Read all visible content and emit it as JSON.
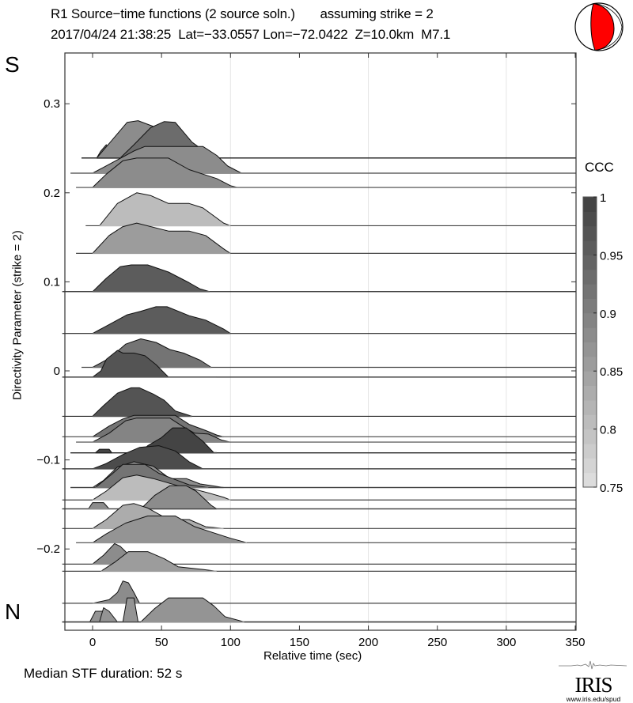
{
  "header": {
    "title_line1": "R1 Source−time functions (2 source soln.)       assuming strike = 2",
    "title_line2": "2017/04/24 21:38:25  Lat=−33.0557 Lon=−72.0422  Z=10.0km  M7.1"
  },
  "labels": {
    "south": "S",
    "north": "N",
    "median": "Median STF duration: 52 s",
    "colorbar_title": "CCC"
  },
  "logo": {
    "word": "IRIS",
    "url": "www.iris.edu/spud"
  },
  "beachball": {
    "fill_color": "#ff0000",
    "icon": "focal-mechanism-beachball-icon"
  },
  "chart_data": {
    "type": "area",
    "title": "R1 Source-time functions (2 source soln.)",
    "subtitle": "assuming strike = 2",
    "xlabel": "Relative time (sec)",
    "ylabel": "Directivity Parameter (strike = 2)",
    "xlim": [
      -20,
      350
    ],
    "ylim": [
      -0.29,
      0.35
    ],
    "xticks": [
      0,
      50,
      100,
      150,
      200,
      250,
      300,
      350
    ],
    "xtick_labels": [
      "0",
      "50",
      "100",
      "150",
      "200",
      "250",
      "300",
      "350"
    ],
    "yticks": [
      0.3,
      0.2,
      0.1,
      0,
      -0.1,
      -0.2
    ],
    "ytick_labels": [
      "0.3",
      "0.2",
      "0.1",
      "0",
      "−0.1",
      "−0.2"
    ],
    "xgrid": [
      100,
      200,
      300
    ],
    "colorbar": {
      "label": "CCC",
      "range": [
        0.75,
        1
      ],
      "ticks": [
        1,
        0.95,
        0.9,
        0.85,
        0.8,
        0.75
      ],
      "tick_labels": [
        "1",
        "0.95",
        "0.9",
        "0.85",
        "0.8",
        "0.75"
      ],
      "gray_at_min": "#dcdcdc",
      "gray_at_max": "#3c3c3c"
    },
    "median_stf_duration_s": 52,
    "series_note": "each trace: baseline = directivity parameter; points = [time_s, amplitude in directivity units]; ccc sets fill gray",
    "traces": [
      {
        "baseline": 0.239,
        "start": -8,
        "ccc": 0.93,
        "points": [
          [
            3,
            0
          ],
          [
            6,
            0.008
          ],
          [
            10,
            0.015
          ],
          [
            14,
            0.007
          ],
          [
            22,
            0
          ]
        ]
      },
      {
        "baseline": 0.239,
        "start": -8,
        "ccc": 0.87,
        "points": [
          [
            3,
            0
          ],
          [
            14,
            0.02
          ],
          [
            25,
            0.04
          ],
          [
            33,
            0.042
          ],
          [
            45,
            0.035
          ],
          [
            55,
            0.02
          ],
          [
            63,
            0.003
          ],
          [
            70,
            0
          ]
        ]
      },
      {
        "baseline": 0.239,
        "start": -8,
        "ccc": 0.93,
        "points": [
          [
            20,
            0
          ],
          [
            30,
            0.015
          ],
          [
            42,
            0.034
          ],
          [
            52,
            0.041
          ],
          [
            60,
            0.04
          ],
          [
            72,
            0.018
          ],
          [
            80,
            0.009
          ],
          [
            86,
            0
          ]
        ]
      },
      {
        "baseline": 0.222,
        "start": -16,
        "ccc": 0.87,
        "points": [
          [
            0,
            0
          ],
          [
            12,
            0.01
          ],
          [
            30,
            0.025
          ],
          [
            38,
            0.03
          ],
          [
            80,
            0.03
          ],
          [
            90,
            0.02
          ],
          [
            98,
            0.008
          ],
          [
            108,
            0
          ]
        ]
      },
      {
        "baseline": 0.206,
        "start": -12,
        "ccc": 0.87,
        "points": [
          [
            0,
            0
          ],
          [
            10,
            0.015
          ],
          [
            22,
            0.03
          ],
          [
            32,
            0.033
          ],
          [
            55,
            0.033
          ],
          [
            70,
            0.02
          ],
          [
            80,
            0.015
          ],
          [
            90,
            0.01
          ],
          [
            100,
            0.002
          ],
          [
            105,
            0
          ]
        ]
      },
      {
        "baseline": 0.163,
        "start": -5,
        "ccc": 0.8,
        "points": [
          [
            5,
            0
          ],
          [
            18,
            0.025
          ],
          [
            32,
            0.037
          ],
          [
            42,
            0.034
          ],
          [
            55,
            0.025
          ],
          [
            70,
            0.025
          ],
          [
            80,
            0.02
          ],
          [
            95,
            0.003
          ],
          [
            100,
            0
          ]
        ]
      },
      {
        "baseline": 0.132,
        "start": -12,
        "ccc": 0.85,
        "points": [
          [
            0,
            0
          ],
          [
            12,
            0.02
          ],
          [
            22,
            0.03
          ],
          [
            32,
            0.034
          ],
          [
            55,
            0.025
          ],
          [
            70,
            0.025
          ],
          [
            82,
            0.02
          ],
          [
            95,
            0.005
          ],
          [
            100,
            0
          ]
        ]
      },
      {
        "baseline": 0.089,
        "start": -22,
        "ccc": 0.95,
        "points": [
          [
            0,
            0
          ],
          [
            10,
            0.015
          ],
          [
            20,
            0.028
          ],
          [
            28,
            0.03
          ],
          [
            40,
            0.03
          ],
          [
            55,
            0.022
          ],
          [
            70,
            0.01
          ],
          [
            78,
            0.003
          ],
          [
            85,
            0
          ]
        ]
      },
      {
        "baseline": 0.042,
        "start": -22,
        "ccc": 0.95,
        "points": [
          [
            0,
            0
          ],
          [
            12,
            0.01
          ],
          [
            25,
            0.021
          ],
          [
            35,
            0.025
          ],
          [
            46,
            0.03
          ],
          [
            54,
            0.03
          ],
          [
            70,
            0.02
          ],
          [
            82,
            0.015
          ],
          [
            95,
            0.005
          ],
          [
            100,
            0
          ]
        ]
      },
      {
        "baseline": 0.004,
        "start": -8,
        "ccc": 0.91,
        "points": [
          [
            0,
            0
          ],
          [
            12,
            0.01
          ],
          [
            24,
            0.026
          ],
          [
            35,
            0.032
          ],
          [
            46,
            0.028
          ],
          [
            56,
            0.02
          ],
          [
            66,
            0.016
          ],
          [
            78,
            0.008
          ],
          [
            86,
            0
          ]
        ]
      },
      {
        "baseline": -0.007,
        "start": -22,
        "ccc": 0.96,
        "points": [
          [
            0,
            0
          ],
          [
            6,
            0.007
          ],
          [
            10,
            0.02
          ],
          [
            18,
            0.03
          ],
          [
            22,
            0.027
          ],
          [
            30,
            0.027
          ],
          [
            38,
            0.024
          ],
          [
            46,
            0.014
          ],
          [
            55,
            0
          ],
          [
            90,
            0
          ]
        ]
      },
      {
        "baseline": -0.051,
        "start": -22,
        "ccc": 0.96,
        "points": [
          [
            0,
            0
          ],
          [
            8,
            0.012
          ],
          [
            18,
            0.026
          ],
          [
            28,
            0.032
          ],
          [
            34,
            0.032
          ],
          [
            44,
            0.025
          ],
          [
            52,
            0.018
          ],
          [
            60,
            0.006
          ],
          [
            72,
            0
          ]
        ]
      },
      {
        "baseline": -0.074,
        "start": -22,
        "ccc": 0.91,
        "points": [
          [
            0,
            0
          ],
          [
            12,
            0.012
          ],
          [
            22,
            0.02
          ],
          [
            30,
            0.024
          ],
          [
            60,
            0.024
          ],
          [
            70,
            0.014
          ],
          [
            82,
            0.007
          ],
          [
            90,
            0.002
          ],
          [
            95,
            0
          ]
        ]
      },
      {
        "baseline": -0.08,
        "start": -12,
        "ccc": 0.89,
        "points": [
          [
            0,
            0
          ],
          [
            12,
            0.01
          ],
          [
            24,
            0.024
          ],
          [
            32,
            0.027
          ],
          [
            56,
            0.027
          ],
          [
            66,
            0.017
          ],
          [
            74,
            0.01
          ],
          [
            84,
            0.009
          ],
          [
            94,
            0.002
          ],
          [
            100,
            0
          ]
        ]
      },
      {
        "baseline": -0.092,
        "start": -16,
        "ccc": 0.99,
        "points": [
          [
            2,
            0
          ],
          [
            5,
            0.004
          ],
          [
            12,
            0.004
          ],
          [
            14,
            0
          ]
        ]
      },
      {
        "baseline": -0.092,
        "start": -16,
        "ccc": 0.99,
        "points": [
          [
            34,
            0
          ],
          [
            40,
            0.008
          ],
          [
            50,
            0.017
          ],
          [
            58,
            0.028
          ],
          [
            68,
            0.028
          ],
          [
            80,
            0.013
          ],
          [
            88,
            0
          ],
          [
            90,
            0
          ]
        ]
      },
      {
        "baseline": -0.11,
        "start": -22,
        "ccc": 0.97,
        "points": [
          [
            0,
            0
          ],
          [
            10,
            0.006
          ],
          [
            22,
            0.016
          ],
          [
            34,
            0.024
          ],
          [
            48,
            0.026
          ],
          [
            60,
            0.02
          ],
          [
            70,
            0.008
          ],
          [
            80,
            0
          ]
        ]
      },
      {
        "baseline": -0.131,
        "start": -16,
        "ccc": 0.87,
        "points": [
          [
            0,
            0
          ],
          [
            8,
            0.008
          ],
          [
            18,
            0.023
          ],
          [
            30,
            0.029
          ],
          [
            44,
            0.024
          ],
          [
            56,
            0.01
          ],
          [
            68,
            0.01
          ],
          [
            78,
            0.004
          ],
          [
            95,
            0
          ]
        ]
      },
      {
        "baseline": -0.131,
        "start": -16,
        "ccc": 0.91,
        "points": [
          [
            2,
            0
          ],
          [
            14,
            0.015
          ],
          [
            22,
            0.026
          ],
          [
            38,
            0.026
          ],
          [
            48,
            0.016
          ],
          [
            58,
            0.01
          ],
          [
            70,
            0.003
          ],
          [
            84,
            0
          ]
        ]
      },
      {
        "baseline": -0.145,
        "start": -22,
        "ccc": 0.8,
        "points": [
          [
            0,
            0
          ],
          [
            10,
            0.01
          ],
          [
            22,
            0.025
          ],
          [
            32,
            0.028
          ],
          [
            44,
            0.024
          ],
          [
            62,
            0.016
          ],
          [
            74,
            0.012
          ],
          [
            84,
            0.008
          ],
          [
            95,
            0.003
          ],
          [
            100,
            0
          ]
        ]
      },
      {
        "baseline": -0.155,
        "start": -22,
        "ccc": 0.87,
        "points": [
          [
            35,
            0
          ],
          [
            45,
            0.015
          ],
          [
            56,
            0.026
          ],
          [
            68,
            0.026
          ],
          [
            75,
            0.02
          ],
          [
            86,
            0.004
          ],
          [
            90,
            0
          ]
        ]
      },
      {
        "baseline": -0.155,
        "start": -22,
        "ccc": 0.87,
        "points": [
          [
            -3,
            0
          ],
          [
            0,
            0.007
          ],
          [
            8,
            0.007
          ],
          [
            12,
            0
          ]
        ]
      },
      {
        "baseline": -0.177,
        "start": -22,
        "ccc": 0.82,
        "points": [
          [
            0,
            0
          ],
          [
            10,
            0.01
          ],
          [
            22,
            0.026
          ],
          [
            30,
            0.028
          ],
          [
            40,
            0.023
          ],
          [
            55,
            0.01
          ],
          [
            70,
            0.01
          ],
          [
            82,
            0.002
          ],
          [
            95,
            0
          ]
        ]
      },
      {
        "baseline": -0.193,
        "start": -12,
        "ccc": 0.86,
        "points": [
          [
            0,
            0
          ],
          [
            10,
            0.01
          ],
          [
            24,
            0.022
          ],
          [
            40,
            0.03
          ],
          [
            60,
            0.03
          ],
          [
            74,
            0.018
          ],
          [
            86,
            0.012
          ],
          [
            100,
            0.005
          ],
          [
            112,
            0
          ]
        ]
      },
      {
        "baseline": -0.217,
        "start": -22,
        "ccc": 0.88,
        "points": [
          [
            0,
            0
          ],
          [
            8,
            0.01
          ],
          [
            16,
            0.023
          ],
          [
            20,
            0.02
          ],
          [
            24,
            0.014
          ],
          [
            32,
            0
          ],
          [
            50,
            0
          ]
        ]
      },
      {
        "baseline": -0.225,
        "start": -22,
        "ccc": 0.85,
        "points": [
          [
            6,
            0
          ],
          [
            16,
            0.01
          ],
          [
            26,
            0.022
          ],
          [
            40,
            0.022
          ],
          [
            52,
            0.014
          ],
          [
            62,
            0.005
          ],
          [
            80,
            0.002
          ],
          [
            90,
            0
          ]
        ]
      },
      {
        "baseline": -0.261,
        "start": -22,
        "ccc": 0.87,
        "points": [
          [
            0,
            0
          ],
          [
            12,
            0.004
          ],
          [
            18,
            0.012
          ],
          [
            22,
            0.025
          ],
          [
            26,
            0.023
          ],
          [
            30,
            0.012
          ],
          [
            34,
            0
          ]
        ]
      },
      {
        "baseline": -0.282,
        "start": -22,
        "ccc": 0.86,
        "points": [
          [
            -2,
            0
          ],
          [
            2,
            0.012
          ],
          [
            8,
            0.012
          ],
          [
            12,
            0
          ]
        ]
      },
      {
        "baseline": -0.282,
        "start": -22,
        "ccc": 0.86,
        "points": [
          [
            5,
            0
          ],
          [
            8,
            0.016
          ],
          [
            12,
            0.012
          ],
          [
            18,
            0
          ]
        ]
      },
      {
        "baseline": -0.282,
        "start": -22,
        "ccc": 0.86,
        "points": [
          [
            22,
            0
          ],
          [
            25,
            0.027
          ],
          [
            30,
            0.027
          ],
          [
            33,
            0
          ]
        ]
      },
      {
        "baseline": -0.282,
        "start": -22,
        "ccc": 0.86,
        "points": [
          [
            35,
            0
          ],
          [
            45,
            0.015
          ],
          [
            55,
            0.027
          ],
          [
            80,
            0.027
          ],
          [
            88,
            0.018
          ],
          [
            96,
            0.006
          ],
          [
            110,
            0
          ]
        ]
      }
    ]
  }
}
